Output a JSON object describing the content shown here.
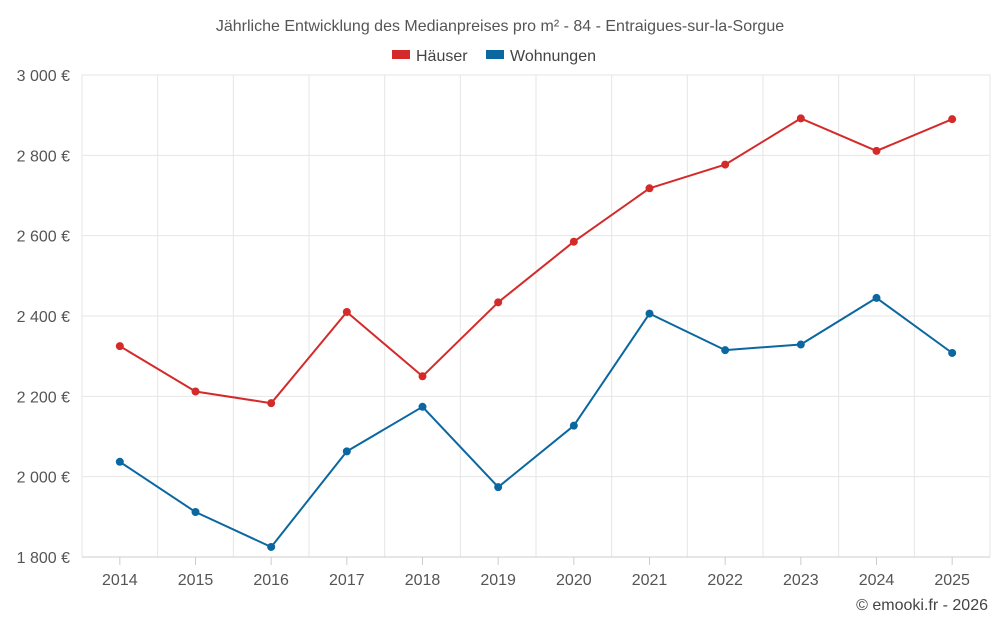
{
  "chart_data": {
    "type": "line",
    "title": "Jährliche Entwicklung des Medianpreises pro m² - 84 - Entraigues-sur-la-Sorgue",
    "categories": [
      "2014",
      "2015",
      "2016",
      "2017",
      "2018",
      "2019",
      "2020",
      "2021",
      "2022",
      "2023",
      "2024",
      "2025"
    ],
    "series": [
      {
        "name": "Häuser",
        "color": "#d42a2a",
        "values": [
          2325,
          2212,
          2183,
          2410,
          2250,
          2434,
          2585,
          2718,
          2777,
          2892,
          2811,
          2890
        ]
      },
      {
        "name": "Wohnungen",
        "color": "#0b67a0",
        "values": [
          2037,
          1912,
          1825,
          2063,
          2174,
          1974,
          2127,
          2406,
          2315,
          2329,
          2445,
          2308
        ]
      }
    ],
    "ylim": [
      1800,
      3000
    ],
    "yticks": [
      1800,
      2000,
      2200,
      2400,
      2600,
      2800,
      3000
    ],
    "ytick_labels": [
      "1 800 €",
      "2 000 €",
      "2 200 €",
      "2 400 €",
      "2 600 €",
      "2 800 €",
      "3 000 €"
    ],
    "xlabel": "",
    "ylabel": "",
    "grid": true,
    "legend_position": "top-center",
    "credit": "© emooki.fr - 2026"
  }
}
